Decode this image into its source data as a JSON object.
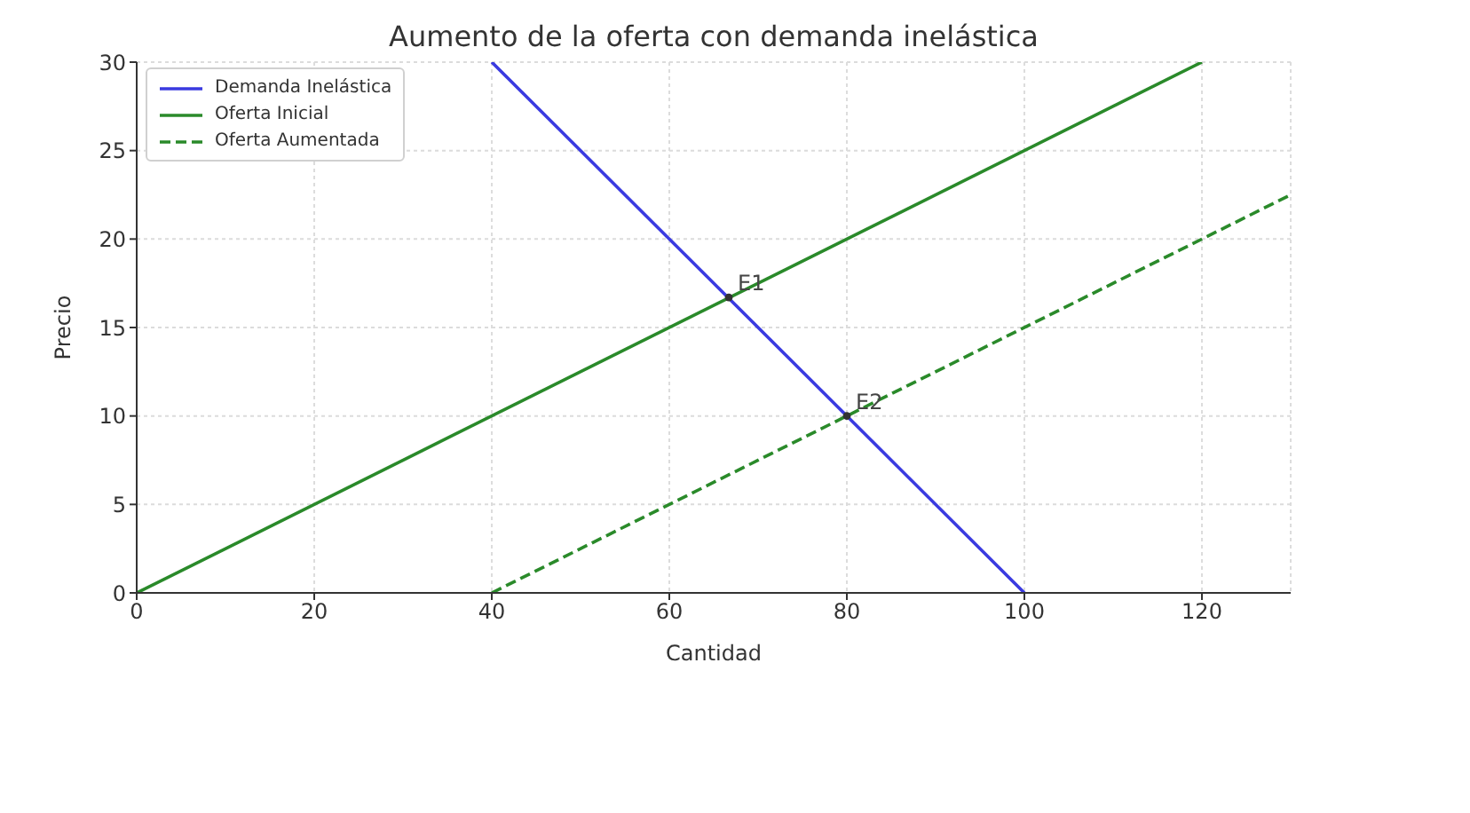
{
  "chart_data": {
    "type": "line",
    "title": "Aumento de la oferta con demanda inelástica",
    "xlabel": "Cantidad",
    "ylabel": "Precio",
    "series": [
      {
        "name": "Demanda Inelástica",
        "color": "#3a3ae0",
        "x": [
          40,
          100
        ],
        "values": [
          30,
          0
        ]
      },
      {
        "name": "Oferta Inicial",
        "color": "#2a8a2a",
        "x": [
          0,
          120
        ],
        "values": [
          0,
          30
        ]
      },
      {
        "name": "Oferta Aumentada",
        "color": "#2a8a2a",
        "x": [
          40,
          130
        ],
        "values": [
          0,
          22.5
        ],
        "line_style": "dashed"
      },
      {
        "type": "scatter",
        "color": "#333333",
        "x": [
          66.7,
          80
        ],
        "values": [
          16.7,
          10
        ],
        "marker": "circle"
      }
    ],
    "annotations": [
      {
        "text": "E1",
        "x": 66.7,
        "y": 16.7
      },
      {
        "text": "E2",
        "x": 80,
        "y": 10
      }
    ],
    "xlim": [
      0,
      130
    ],
    "xticks": [
      0,
      20,
      40,
      60,
      80,
      100,
      120
    ],
    "ylim": [
      0,
      30
    ],
    "yticks": [
      0,
      5,
      10,
      15,
      20,
      25,
      30
    ],
    "grid": true,
    "legend": "top left",
    "line_style": "solid"
  }
}
